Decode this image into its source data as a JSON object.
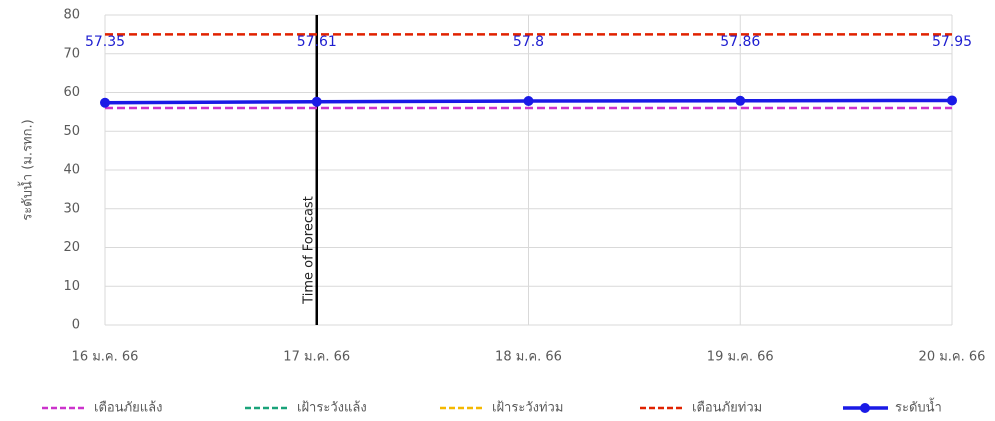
{
  "chart_data": {
    "type": "line",
    "y_label": "ระดับน้ำ (ม.รทก.)",
    "categories": [
      "16 ม.ค. 66",
      "17 ม.ค. 66",
      "18 ม.ค. 66",
      "19 ม.ค. 66",
      "20 ม.ค. 66"
    ],
    "series": [
      {
        "name": "เตือนภัยแล้ง",
        "color": "#cc33cc",
        "dashed": true,
        "values": [
          56,
          56,
          56,
          56,
          56
        ]
      },
      {
        "name": "เฝ้าระวังแล้ง",
        "color": "#1aa37a",
        "dashed": true,
        "values": [
          null,
          null,
          null,
          null,
          null
        ]
      },
      {
        "name": "เฝ้าระวังท่วม",
        "color": "#f5b800",
        "dashed": true,
        "values": [
          null,
          null,
          null,
          null,
          null
        ]
      },
      {
        "name": "เตือนภัยท่วม",
        "color": "#e02200",
        "dashed": true,
        "values": [
          75,
          75,
          75,
          75,
          75
        ]
      },
      {
        "name": "ระดับน้ำ",
        "color": "#1a1ae6",
        "dashed": false,
        "markers": true,
        "values": [
          57.35,
          57.61,
          57.8,
          57.86,
          57.95
        ]
      }
    ],
    "ylim": [
      0,
      80
    ],
    "yticks": [
      0,
      10,
      20,
      30,
      40,
      50,
      60,
      70,
      80
    ],
    "grid": true,
    "annotations": [
      {
        "text": "Time of Forecast",
        "x": "17 ม.ค. 66"
      }
    ],
    "legend": "bottom"
  }
}
